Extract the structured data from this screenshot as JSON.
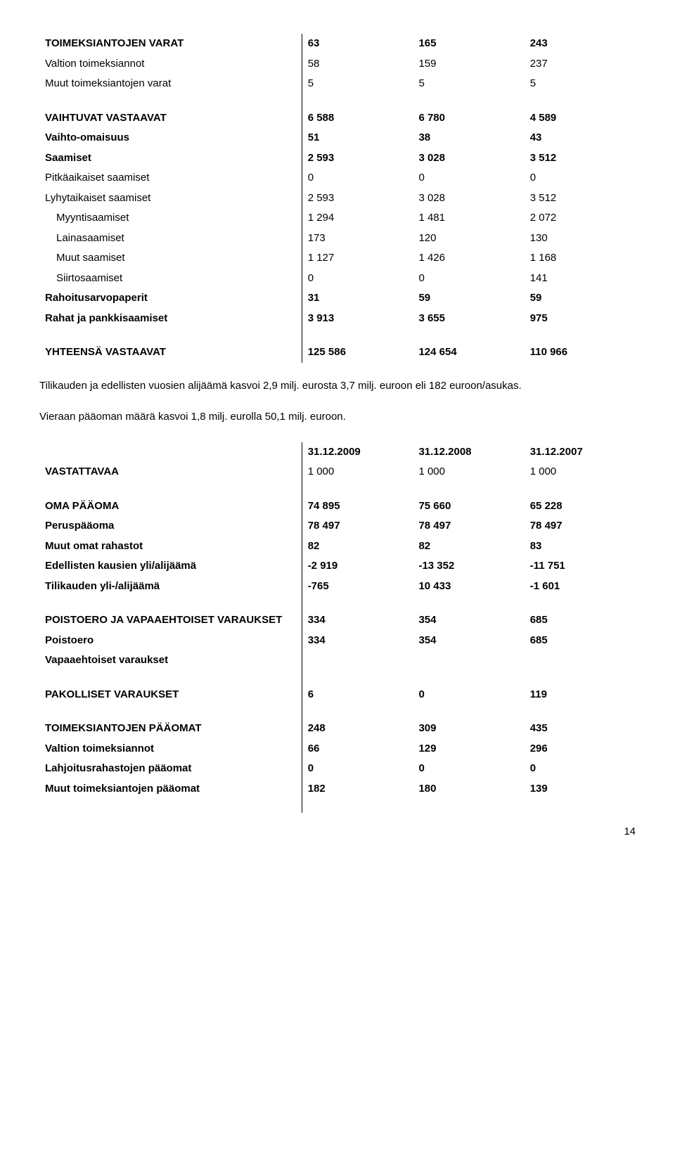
{
  "table1": {
    "rows": [
      {
        "label": "TOIMEKSIANTOJEN VARAT",
        "c1": "63",
        "c2": "165",
        "c3": "243",
        "bold": true,
        "indent": 0
      },
      {
        "label": "Valtion toimeksiannot",
        "c1": "58",
        "c2": "159",
        "c3": "237",
        "bold": false,
        "indent": 0
      },
      {
        "label": "Muut toimeksiantojen varat",
        "c1": "5",
        "c2": "5",
        "c3": "5",
        "bold": false,
        "indent": 0
      },
      {
        "blank": true
      },
      {
        "label": "VAIHTUVAT VASTAAVAT",
        "c1": "6 588",
        "c2": "6 780",
        "c3": "4 589",
        "bold": true,
        "indent": 0
      },
      {
        "label": "Vaihto-omaisuus",
        "c1": "51",
        "c2": "38",
        "c3": "43",
        "bold": true,
        "indent": 0
      },
      {
        "label": "Saamiset",
        "c1": "2 593",
        "c2": "3 028",
        "c3": "3 512",
        "bold": true,
        "indent": 0
      },
      {
        "label": "Pitkäaikaiset saamiset",
        "c1": "0",
        "c2": "0",
        "c3": "0",
        "bold": false,
        "indent": 0
      },
      {
        "label": "Lyhytaikaiset saamiset",
        "c1": "2 593",
        "c2": "3 028",
        "c3": "3 512",
        "bold": false,
        "indent": 0
      },
      {
        "label": "Myyntisaamiset",
        "c1": "1 294",
        "c2": "1 481",
        "c3": "2 072",
        "bold": false,
        "indent": 1
      },
      {
        "label": "Lainasaamiset",
        "c1": "173",
        "c2": "120",
        "c3": "130",
        "bold": false,
        "indent": 1
      },
      {
        "label": "Muut saamiset",
        "c1": "1 127",
        "c2": "1 426",
        "c3": "1 168",
        "bold": false,
        "indent": 1
      },
      {
        "label": "Siirtosaamiset",
        "c1": "0",
        "c2": "0",
        "c3": "141",
        "bold": false,
        "indent": 1
      },
      {
        "label": "Rahoitusarvopaperit",
        "c1": "31",
        "c2": "59",
        "c3": "59",
        "bold": true,
        "indent": 0
      },
      {
        "label": "Rahat ja pankkisaamiset",
        "c1": "3 913",
        "c2": "3 655",
        "c3": "975",
        "bold": true,
        "indent": 0
      },
      {
        "blank": true
      },
      {
        "label": "YHTEENSÄ VASTAAVAT",
        "c1": "125 586",
        "c2": "124 654",
        "c3": "110 966",
        "bold": true,
        "indent": 0
      }
    ]
  },
  "para1": "Tilikauden ja edellisten vuosien alijäämä kasvoi 2,9 milj. eurosta 3,7 milj. euroon eli 182 euroon/asukas.",
  "para2": "Vieraan pääoman määrä kasvoi 1,8 milj. eurolla 50,1 milj. euroon.",
  "table2": {
    "header": {
      "label": "VASTATTAVAA",
      "h1a": "31.12.2009",
      "h1b": "1 000",
      "h2a": "31.12.2008",
      "h2b": "1 000",
      "h3a": "31.12.2007",
      "h3b": "1 000"
    },
    "rows": [
      {
        "blank": true
      },
      {
        "label": "OMA PÄÄOMA",
        "c1": "74 895",
        "c2": "75 660",
        "c3": "65 228",
        "bold": true,
        "indent": 0
      },
      {
        "label": "Peruspääoma",
        "c1": "78 497",
        "c2": "78 497",
        "c3": "78 497",
        "bold": true,
        "indent": 0
      },
      {
        "label": "Muut omat rahastot",
        "c1": "82",
        "c2": "82",
        "c3": "83",
        "bold": true,
        "indent": 0
      },
      {
        "label": "Edellisten kausien yli/alijäämä",
        "c1": "-2 919",
        "c2": "-13 352",
        "c3": "-11 751",
        "bold": true,
        "indent": 0
      },
      {
        "label": "Tilikauden yli-/alijäämä",
        "c1": "-765",
        "c2": "10 433",
        "c3": "-1 601",
        "bold": true,
        "indent": 0
      },
      {
        "blank": true
      },
      {
        "label": "POISTOERO JA VAPAAEHTOISET VARAUKSET",
        "c1": "334",
        "c2": "354",
        "c3": "685",
        "bold": true,
        "indent": 0
      },
      {
        "label": "Poistoero",
        "c1": "334",
        "c2": "354",
        "c3": "685",
        "bold": true,
        "indent": 0
      },
      {
        "label": "Vapaaehtoiset varaukset",
        "c1": "",
        "c2": "",
        "c3": "",
        "bold": true,
        "indent": 0
      },
      {
        "blank": true
      },
      {
        "label": "PAKOLLISET VARAUKSET",
        "c1": "6",
        "c2": "0",
        "c3": "119",
        "bold": true,
        "indent": 0
      },
      {
        "blank": true
      },
      {
        "label": "TOIMEKSIANTOJEN PÄÄOMAT",
        "c1": "248",
        "c2": "309",
        "c3": "435",
        "bold": true,
        "indent": 0
      },
      {
        "label": "Valtion toimeksiannot",
        "c1": "66",
        "c2": "129",
        "c3": "296",
        "bold": true,
        "indent": 0
      },
      {
        "label": "Lahjoitusrahastojen pääomat",
        "c1": "0",
        "c2": "0",
        "c3": "0",
        "bold": true,
        "indent": 0
      },
      {
        "label": "Muut toimeksiantojen pääomat",
        "c1": "182",
        "c2": "180",
        "c3": "139",
        "bold": true,
        "indent": 0
      },
      {
        "blank": true
      }
    ]
  },
  "page_number": "14"
}
